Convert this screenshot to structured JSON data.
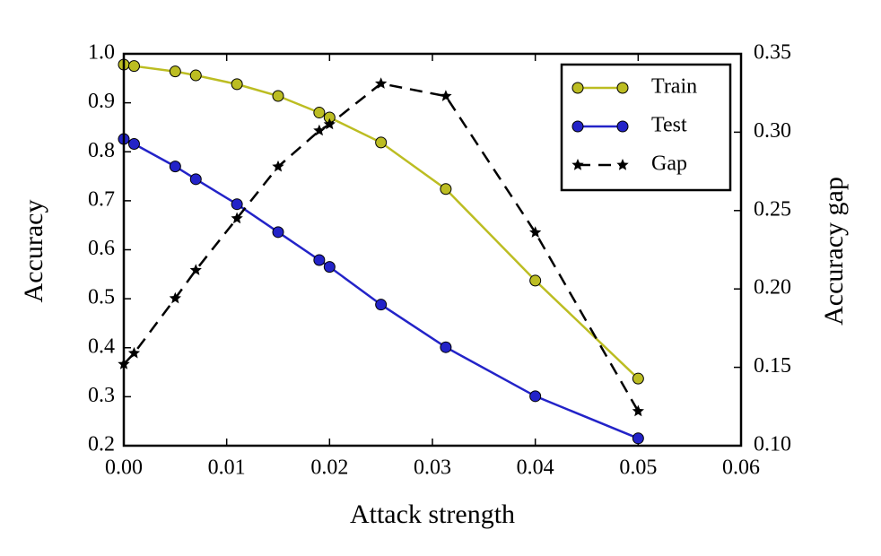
{
  "chart_data": {
    "type": "line",
    "xlabel": "Attack strength",
    "ylabel": "Accuracy",
    "y2label": "Accuracy gap",
    "x": [
      0,
      0.001,
      0.005,
      0.007,
      0.011,
      0.015,
      0.019,
      0.02,
      0.025,
      0.0313,
      0.04,
      0.05
    ],
    "series": [
      {
        "name": "Train",
        "color": "#bcbd22",
        "marker": "circle",
        "values": [
          0.978,
          0.975,
          0.964,
          0.956,
          0.938,
          0.914,
          0.88,
          0.87,
          0.819,
          0.724,
          0.537,
          0.337
        ]
      },
      {
        "name": "Test",
        "color": "#2323c8",
        "marker": "circle",
        "values": [
          0.826,
          0.816,
          0.77,
          0.744,
          0.693,
          0.636,
          0.579,
          0.565,
          0.488,
          0.401,
          0.301,
          0.215
        ]
      },
      {
        "name": "Gap",
        "color": "#000000",
        "marker": "star",
        "dashed": true,
        "axis": "y2",
        "values": [
          0.152,
          0.159,
          0.194,
          0.212,
          0.245,
          0.278,
          0.301,
          0.305,
          0.331,
          0.323,
          0.236,
          0.122
        ]
      }
    ],
    "xlim": [
      0,
      0.06
    ],
    "xticks": [
      {
        "value": 0,
        "label": "0.00"
      },
      {
        "value": 0.01,
        "label": "0.01"
      },
      {
        "value": 0.02,
        "label": "0.02"
      },
      {
        "value": 0.03,
        "label": "0.03"
      },
      {
        "value": 0.04,
        "label": "0.04"
      },
      {
        "value": 0.05,
        "label": "0.05"
      },
      {
        "value": 0.06,
        "label": "0.06"
      }
    ],
    "ylim": [
      0.2,
      1.0
    ],
    "yticks": [
      0.2,
      0.3,
      0.4,
      0.5,
      0.6,
      0.7,
      0.8,
      0.9,
      {
        "value": 1.0,
        "label": "1.0"
      }
    ],
    "y2lim": [
      0.1,
      0.35
    ],
    "y2ticks": [
      {
        "value": 0.1,
        "label": "0.10"
      },
      0.15,
      {
        "value": 0.2,
        "label": "0.20"
      },
      0.25,
      {
        "value": 0.3,
        "label": "0.30"
      },
      0.35
    ],
    "legend": "upper right"
  }
}
